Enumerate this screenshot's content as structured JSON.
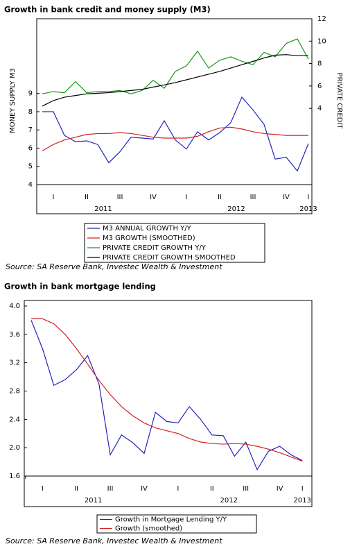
{
  "chart_data": [
    {
      "type": "line",
      "title": "Growth in bank credit and money supply (M3)",
      "y_label": "MONEY SUPPLY M3",
      "y2_label": "PRIVATE CREDIT",
      "categories": [
        null,
        "I",
        null,
        null,
        "II",
        null,
        null,
        "III",
        null,
        null,
        "IV",
        null,
        null,
        "I",
        null,
        null,
        "II",
        null,
        null,
        "III",
        null,
        null,
        "IV",
        null,
        "I"
      ],
      "years": [
        "2011",
        "2012",
        "2013"
      ],
      "ylim": [
        4,
        13.1
      ],
      "yticks": [
        4,
        5,
        6,
        7,
        8,
        9
      ],
      "y2lim": [
        -2.8,
        12
      ],
      "y2ticks": [
        4,
        6,
        8,
        10,
        12
      ],
      "series": [
        {
          "name": "M3 ANNUAL GROWTH Y/Y",
          "color": "#2222bb",
          "values": [
            8.0,
            8.0,
            6.7,
            6.35,
            6.4,
            6.2,
            5.2,
            5.8,
            6.6,
            6.55,
            6.5,
            7.5,
            6.45,
            5.95,
            6.9,
            6.45,
            6.85,
            7.4,
            8.8,
            8.1,
            7.3,
            5.4,
            5.5,
            4.75,
            6.25
          ]
        },
        {
          "name": "M3 GROWTH (SMOOTHED)",
          "color": "#d42020",
          "values": [
            5.85,
            6.2,
            6.45,
            6.6,
            6.75,
            6.8,
            6.8,
            6.85,
            6.8,
            6.7,
            6.6,
            6.55,
            6.55,
            6.55,
            6.65,
            6.9,
            7.1,
            7.15,
            7.05,
            6.9,
            6.8,
            6.75,
            6.7,
            6.7,
            6.7
          ]
        },
        {
          "name": "PRIVATE CREDIT GROWTH Y/Y",
          "color": "#1a961a",
          "axis": "y2",
          "values": [
            5.3,
            5.5,
            5.4,
            6.4,
            5.4,
            5.5,
            5.5,
            5.6,
            5.3,
            5.6,
            6.5,
            5.8,
            7.3,
            7.8,
            9.1,
            7.6,
            8.3,
            8.6,
            8.2,
            7.9,
            9.0,
            8.6,
            9.8,
            10.2,
            8.4
          ]
        },
        {
          "name": "PRIVATE CREDIT GROWTH SMOOTHED",
          "color": "#000000",
          "axis": "y2",
          "values": [
            4.2,
            4.7,
            5.0,
            5.15,
            5.3,
            5.35,
            5.4,
            5.5,
            5.6,
            5.7,
            5.9,
            6.1,
            6.3,
            6.55,
            6.8,
            7.05,
            7.3,
            7.6,
            7.9,
            8.2,
            8.5,
            8.75,
            8.8,
            8.7,
            8.7
          ]
        }
      ],
      "source": "Source: SA Reserve Bank, Investec Wealth & Investment"
    },
    {
      "type": "line",
      "title": "Growth in bank mortgage lending",
      "categories": [
        null,
        "I",
        null,
        null,
        "II",
        null,
        null,
        "III",
        null,
        null,
        "IV",
        null,
        null,
        "I",
        null,
        null,
        "II",
        null,
        null,
        "III",
        null,
        null,
        "IV",
        null,
        "I"
      ],
      "years": [
        "2011",
        "2012",
        "2013"
      ],
      "ylim": [
        1.6,
        4.0
      ],
      "yticks": [
        1.6,
        {
          "value": 2,
          "label": "2.0"
        },
        2.4,
        2.8,
        3.2,
        3.6,
        {
          "value": 4,
          "label": "4.0"
        }
      ],
      "series": [
        {
          "name": "Growth in Mortgage Lending Y/Y",
          "color": "#2222bb",
          "values": [
            3.8,
            3.4,
            2.88,
            2.96,
            3.1,
            3.3,
            2.9,
            1.9,
            2.18,
            2.07,
            1.92,
            2.5,
            2.37,
            2.35,
            2.58,
            2.4,
            2.18,
            2.17,
            1.88,
            2.08,
            1.69,
            1.95,
            2.02,
            1.9,
            1.82
          ]
        },
        {
          "name": "Growth (smoothed)",
          "color": "#d42020",
          "values": [
            3.82,
            3.82,
            3.75,
            3.6,
            3.4,
            3.18,
            2.95,
            2.75,
            2.58,
            2.45,
            2.35,
            2.28,
            2.24,
            2.2,
            2.13,
            2.08,
            2.06,
            2.05,
            2.06,
            2.05,
            2.02,
            1.98,
            1.93,
            1.87,
            1.81
          ]
        }
      ],
      "source": "Source: SA Reserve Bank, Investec Wealth & Investment"
    }
  ]
}
